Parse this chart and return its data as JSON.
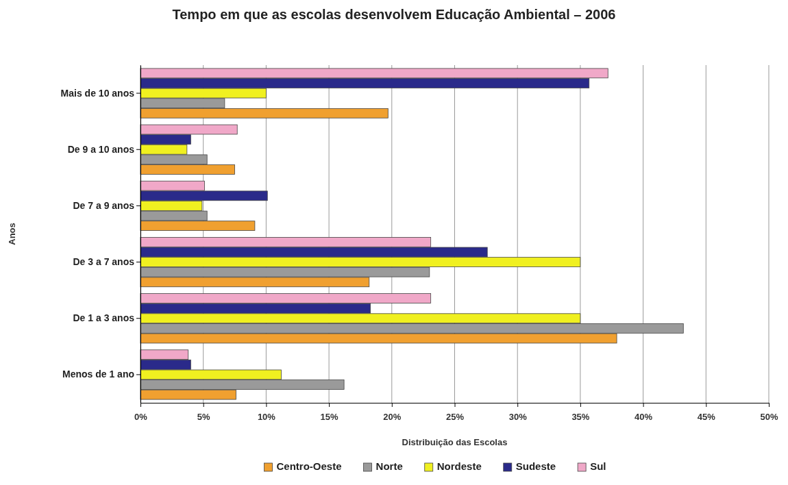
{
  "chart_data": {
    "type": "bar",
    "orientation": "horizontal",
    "title": "Tempo em que as escolas desenvolvem Educação Ambiental – 2006",
    "xlabel": "Distribuição das Escolas",
    "ylabel": "Anos",
    "categories": [
      "Mais de 10 anos",
      "De 9 a 10 anos",
      "De 7 a 9 anos",
      "De 3 a 7 anos",
      "De 1 a 3 anos",
      "Menos de 1 ano"
    ],
    "series": [
      {
        "name": "Centro-Oeste",
        "color": "#f0a030",
        "values": [
          19.7,
          7.5,
          9.1,
          18.2,
          37.9,
          7.6
        ]
      },
      {
        "name": "Norte",
        "color": "#9a9a9a",
        "values": [
          6.7,
          5.3,
          5.3,
          23.0,
          43.2,
          16.2
        ]
      },
      {
        "name": "Nordeste",
        "color": "#f0f020",
        "values": [
          10.0,
          3.7,
          4.9,
          35.0,
          35.0,
          11.2
        ]
      },
      {
        "name": "Sudeste",
        "color": "#2a2a8a",
        "values": [
          35.7,
          4.0,
          10.1,
          27.6,
          18.3,
          4.0
        ]
      },
      {
        "name": "Sul",
        "color": "#f0a8c8",
        "values": [
          37.2,
          7.7,
          5.1,
          23.1,
          23.1,
          3.8
        ]
      }
    ],
    "xlim": [
      0,
      50
    ],
    "xticks": [
      {
        "value": 0,
        "label": "0%"
      },
      {
        "value": 5,
        "label": "5%"
      },
      {
        "value": 10,
        "label": "10%"
      },
      {
        "value": 15,
        "label": "15%"
      },
      {
        "value": 20,
        "label": "20%"
      },
      {
        "value": 25,
        "label": "25%"
      },
      {
        "value": 30,
        "label": "30%"
      },
      {
        "value": 35,
        "label": "35%"
      },
      {
        "value": 40,
        "label": "40%"
      },
      {
        "value": 45,
        "label": "45%"
      },
      {
        "value": 50,
        "label": "50%"
      }
    ],
    "grid": "x",
    "legend": "bottom"
  }
}
